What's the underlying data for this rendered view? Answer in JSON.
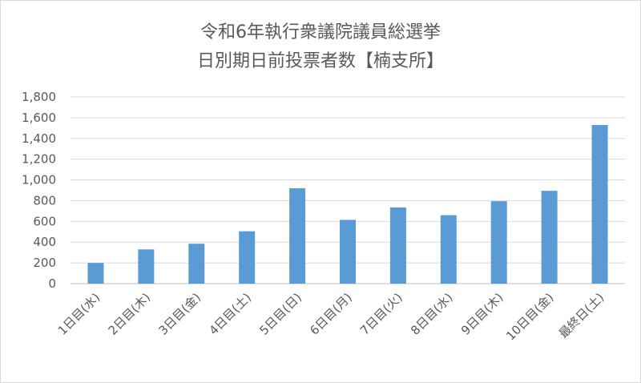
{
  "chart_data": {
    "type": "bar",
    "title": "令和6年執行衆議院議員総選挙",
    "subtitle": "日別期日前投票者数【楠支所】",
    "categories": [
      "1日目(水)",
      "2日目(木)",
      "3日目(金)",
      "4日目(土)",
      "5日目(日)",
      "6日目(月)",
      "7日目(火)",
      "8日目(水)",
      "9日目(木)",
      "10日目(金)",
      "最終日(土)"
    ],
    "values": [
      200,
      330,
      385,
      505,
      920,
      615,
      735,
      660,
      795,
      895,
      1530
    ],
    "ylim": [
      0,
      1800
    ],
    "yticks": [
      "0",
      "200",
      "400",
      "600",
      "800",
      "1,000",
      "1,200",
      "1,400",
      "1,600",
      "1,800"
    ],
    "ytick_values": [
      0,
      200,
      400,
      600,
      800,
      1000,
      1200,
      1400,
      1600,
      1800
    ],
    "bar_color": "#5b9bd5",
    "grid": true,
    "legend": "none"
  }
}
